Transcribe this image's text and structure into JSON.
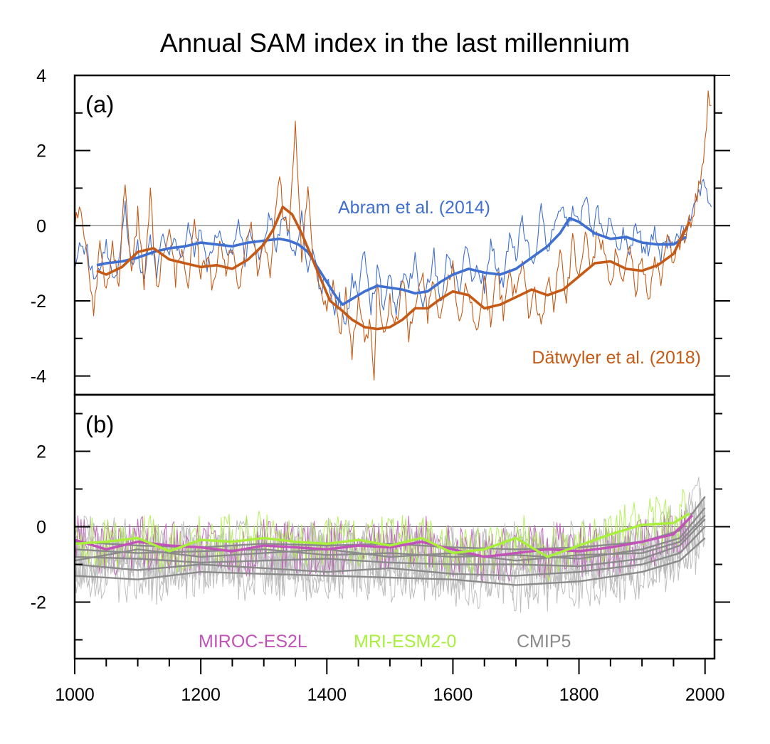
{
  "chart_data": [
    {
      "panel": "(a)",
      "title": "Annual SAM index in the last millennium",
      "type": "line",
      "xlim": [
        1000,
        2015
      ],
      "ylim": [
        -4.5,
        4
      ],
      "yticks": [
        -4,
        -2,
        0,
        2,
        4
      ],
      "ytick_labels": [
        "-4",
        "-2",
        "0",
        "2",
        "4"
      ],
      "zero_line": true,
      "grid": false,
      "series": [
        {
          "name": "Abram et al. (2014)",
          "color": "#3f6fd0",
          "kind": "smoothed",
          "x": [
            1035,
            1050,
            1075,
            1100,
            1125,
            1150,
            1175,
            1200,
            1225,
            1250,
            1275,
            1300,
            1325,
            1340,
            1355,
            1370,
            1385,
            1400,
            1415,
            1425,
            1440,
            1460,
            1480,
            1500,
            1520,
            1540,
            1560,
            1580,
            1600,
            1625,
            1650,
            1675,
            1700,
            1725,
            1750,
            1770,
            1785,
            1800,
            1825,
            1850,
            1875,
            1900,
            1925,
            1950,
            1970
          ],
          "y": [
            -1.05,
            -1.0,
            -0.95,
            -0.85,
            -0.7,
            -0.6,
            -0.55,
            -0.45,
            -0.5,
            -0.55,
            -0.45,
            -0.4,
            -0.35,
            -0.4,
            -0.5,
            -0.7,
            -1.1,
            -1.5,
            -1.9,
            -2.1,
            -1.95,
            -1.75,
            -1.6,
            -1.65,
            -1.7,
            -1.8,
            -1.75,
            -1.5,
            -1.3,
            -1.15,
            -1.25,
            -1.3,
            -1.15,
            -0.85,
            -0.55,
            -0.2,
            0.2,
            0.1,
            -0.2,
            -0.35,
            -0.3,
            -0.45,
            -0.5,
            -0.5,
            -0.3
          ]
        },
        {
          "name": "Abram et al. (2014)",
          "color": "#3f6fd0",
          "kind": "annual",
          "x": [
            1000,
            1010,
            1020,
            1030,
            1040,
            1050,
            1060,
            1070,
            1080,
            1090,
            1100,
            1110,
            1120,
            1130,
            1140,
            1150,
            1160,
            1170,
            1180,
            1190,
            1200,
            1210,
            1220,
            1230,
            1240,
            1250,
            1260,
            1270,
            1280,
            1290,
            1300,
            1310,
            1320,
            1330,
            1340,
            1350,
            1360,
            1370,
            1380,
            1390,
            1400,
            1410,
            1420,
            1430,
            1440,
            1450,
            1460,
            1470,
            1480,
            1490,
            1500,
            1510,
            1520,
            1530,
            1540,
            1550,
            1560,
            1570,
            1580,
            1590,
            1600,
            1610,
            1620,
            1630,
            1640,
            1650,
            1660,
            1670,
            1680,
            1690,
            1700,
            1710,
            1720,
            1730,
            1740,
            1750,
            1760,
            1770,
            1780,
            1790,
            1800,
            1810,
            1820,
            1830,
            1840,
            1850,
            1860,
            1870,
            1880,
            1890,
            1900,
            1910,
            1920,
            1930,
            1940,
            1950,
            1960,
            1970,
            1980,
            1990,
            2000,
            2010
          ],
          "y": [
            -1.1,
            -0.4,
            -0.7,
            -1.4,
            -1.2,
            -0.6,
            -1.3,
            -1.0,
            0.5,
            -1.2,
            -0.6,
            -1.5,
            -0.4,
            -1.3,
            0.0,
            -0.8,
            -0.3,
            -0.9,
            0.2,
            -0.7,
            -0.2,
            -1.0,
            -0.5,
            0.1,
            -0.8,
            -0.6,
            0.0,
            -0.9,
            -0.1,
            -0.8,
            -0.4,
            0.3,
            -0.6,
            0.4,
            -0.3,
            -0.9,
            0.2,
            -1.3,
            -0.7,
            -1.7,
            -1.4,
            -2.3,
            -2.0,
            -2.8,
            -1.4,
            -2.0,
            -0.5,
            -2.3,
            -1.2,
            -2.1,
            -1.1,
            -2.5,
            -1.3,
            -1.7,
            -0.9,
            -2.2,
            -1.6,
            -0.8,
            -2.0,
            -1.0,
            -0.9,
            -1.7,
            -0.6,
            -1.4,
            -1.0,
            -1.6,
            -0.5,
            -1.2,
            -1.4,
            -0.2,
            -1.0,
            0.1,
            -0.6,
            -1.0,
            0.5,
            -0.8,
            -0.1,
            0.6,
            0.0,
            0.3,
            0.0,
            0.8,
            -0.2,
            0.4,
            -0.4,
            0.1,
            -0.6,
            -0.2,
            -0.7,
            0.0,
            -0.5,
            -0.7,
            -0.2,
            -0.8,
            -0.4,
            -0.6,
            -0.3,
            -0.1,
            0.3,
            0.8,
            1.1,
            0.5
          ]
        },
        {
          "name": "Dätwyler et al. (2018)",
          "color": "#c55a16",
          "kind": "smoothed",
          "x": [
            1035,
            1050,
            1075,
            1100,
            1125,
            1150,
            1175,
            1200,
            1225,
            1250,
            1275,
            1300,
            1315,
            1330,
            1345,
            1360,
            1375,
            1390,
            1405,
            1420,
            1440,
            1460,
            1480,
            1500,
            1520,
            1540,
            1560,
            1580,
            1600,
            1625,
            1650,
            1675,
            1700,
            1725,
            1750,
            1775,
            1800,
            1825,
            1850,
            1875,
            1900,
            1925,
            1950,
            1975
          ],
          "y": [
            -1.2,
            -1.3,
            -1.1,
            -0.7,
            -0.6,
            -0.9,
            -1.0,
            -1.1,
            -1.05,
            -1.15,
            -0.9,
            -0.5,
            -0.1,
            0.5,
            0.3,
            -0.2,
            -0.8,
            -1.4,
            -2.0,
            -2.2,
            -2.5,
            -2.7,
            -2.75,
            -2.7,
            -2.5,
            -2.2,
            -2.2,
            -1.95,
            -1.75,
            -1.85,
            -2.2,
            -2.1,
            -1.9,
            -1.7,
            -1.85,
            -1.7,
            -1.35,
            -1.0,
            -0.95,
            -1.15,
            -1.2,
            -1.05,
            -0.75,
            0.1
          ]
        },
        {
          "name": "Dätwyler et al. (2018)",
          "color": "#c55a16",
          "kind": "annual",
          "x": [
            1000,
            1010,
            1020,
            1030,
            1040,
            1050,
            1060,
            1070,
            1080,
            1090,
            1100,
            1110,
            1120,
            1130,
            1140,
            1150,
            1160,
            1170,
            1180,
            1190,
            1200,
            1210,
            1220,
            1230,
            1240,
            1250,
            1260,
            1270,
            1280,
            1290,
            1300,
            1310,
            1320,
            1325,
            1330,
            1340,
            1350,
            1356,
            1360,
            1370,
            1380,
            1390,
            1400,
            1410,
            1420,
            1430,
            1440,
            1450,
            1460,
            1470,
            1475,
            1480,
            1490,
            1500,
            1510,
            1520,
            1530,
            1540,
            1550,
            1560,
            1570,
            1580,
            1590,
            1600,
            1610,
            1620,
            1630,
            1640,
            1650,
            1660,
            1670,
            1680,
            1690,
            1700,
            1710,
            1720,
            1730,
            1740,
            1750,
            1760,
            1770,
            1780,
            1790,
            1800,
            1810,
            1820,
            1830,
            1840,
            1850,
            1860,
            1870,
            1880,
            1890,
            1900,
            1910,
            1920,
            1930,
            1940,
            1950,
            1960,
            1970,
            1980,
            1990,
            2000,
            2005,
            2010
          ],
          "y": [
            0.1,
            0.5,
            -0.8,
            -2.3,
            -0.6,
            -1.9,
            -0.4,
            -1.6,
            1.2,
            -1.3,
            0.3,
            -1.5,
            0.8,
            -1.7,
            -0.7,
            -0.2,
            -1.4,
            -0.5,
            -1.6,
            0.2,
            -1.3,
            -0.8,
            -1.7,
            -0.3,
            -1.2,
            -0.6,
            -1.7,
            -0.8,
            0.1,
            -1.1,
            -0.5,
            -1.2,
            0.6,
            1.5,
            0.4,
            -0.2,
            2.9,
            0.6,
            -0.8,
            0.9,
            -1.2,
            -1.5,
            -2.3,
            -1.6,
            -3.0,
            -1.8,
            -3.4,
            -2.0,
            -3.1,
            -2.6,
            -4.3,
            -1.6,
            -2.9,
            -2.0,
            -2.6,
            -1.4,
            -2.9,
            -2.3,
            -1.2,
            -2.4,
            -1.5,
            -2.6,
            -1.7,
            -1.1,
            -2.7,
            -1.6,
            -2.1,
            -2.9,
            -1.5,
            -2.6,
            -1.2,
            -2.3,
            -1.4,
            -1.9,
            -1.0,
            -2.4,
            -1.8,
            -2.8,
            -1.4,
            -2.1,
            -0.7,
            -2.0,
            -0.4,
            -1.5,
            -0.1,
            -1.3,
            0.0,
            -0.8,
            -1.6,
            -0.6,
            -1.5,
            -0.4,
            -1.8,
            -0.7,
            -2.1,
            -0.9,
            -1.4,
            -0.2,
            -0.9,
            -0.5,
            -0.2,
            0.3,
            1.0,
            2.2,
            3.4,
            3.2
          ]
        }
      ]
    },
    {
      "panel": "(b)",
      "type": "line",
      "xlim": [
        1000,
        2015
      ],
      "ylim": [
        -3.5,
        3.5
      ],
      "yticks": [
        -2,
        0,
        2
      ],
      "ytick_labels": [
        "-2",
        "0",
        "2"
      ],
      "xticks": [
        1000,
        1200,
        1400,
        1600,
        1800,
        2000
      ],
      "xtick_labels": [
        "1000",
        "1200",
        "1400",
        "1600",
        "1800",
        "2000"
      ],
      "zero_line": true,
      "grid": false,
      "series": [
        {
          "name": "CMIP5",
          "color": "#8a8a8a",
          "kind": "smoothed",
          "members": [
            {
              "x": [
                1000,
                1100,
                1200,
                1300,
                1400,
                1500,
                1600,
                1700,
                1800,
                1900,
                1960,
                2000
              ],
              "y": [
                -1.3,
                -1.4,
                -1.2,
                -1.25,
                -1.3,
                -1.35,
                -1.4,
                -1.55,
                -1.45,
                -1.2,
                -0.9,
                -0.3
              ]
            },
            {
              "x": [
                1000,
                1100,
                1200,
                1300,
                1400,
                1500,
                1600,
                1700,
                1800,
                1900,
                1960,
                2000
              ],
              "y": [
                -1.0,
                -1.15,
                -1.0,
                -1.1,
                -1.2,
                -1.1,
                -1.25,
                -1.3,
                -1.2,
                -1.0,
                -0.7,
                0.0
              ]
            },
            {
              "x": [
                1000,
                1100,
                1200,
                1300,
                1400,
                1500,
                1600,
                1700,
                1800,
                1900,
                1960,
                2000
              ],
              "y": [
                -0.8,
                -0.85,
                -0.95,
                -0.9,
                -0.85,
                -0.95,
                -1.0,
                -1.0,
                -1.05,
                -0.85,
                -0.5,
                0.2
              ]
            },
            {
              "x": [
                1000,
                1100,
                1200,
                1300,
                1400,
                1500,
                1600,
                1700,
                1800,
                1900,
                1960,
                2000
              ],
              "y": [
                -0.6,
                -0.7,
                -0.65,
                -0.6,
                -0.75,
                -0.7,
                -0.8,
                -0.75,
                -0.85,
                -0.6,
                -0.3,
                0.5
              ]
            },
            {
              "x": [
                1000,
                1100,
                1200,
                1300,
                1400,
                1500,
                1600,
                1700,
                1800,
                1900,
                1960,
                2000
              ],
              "y": [
                -0.4,
                -0.5,
                -0.55,
                -0.45,
                -0.5,
                -0.45,
                -0.55,
                -0.6,
                -0.55,
                -0.4,
                -0.1,
                0.8
              ]
            },
            {
              "x": [
                1000,
                1100,
                1200,
                1300,
                1400,
                1500,
                1600,
                1700,
                1800,
                1900,
                1960,
                2000
              ],
              "y": [
                -0.9,
                -0.6,
                -0.8,
                -0.7,
                -0.6,
                -0.8,
                -0.7,
                -0.9,
                -0.75,
                -0.7,
                -0.4,
                0.3
              ]
            }
          ]
        },
        {
          "name": "MIROC-ES2L",
          "color": "#c052b8",
          "kind": "smoothed",
          "x": [
            1000,
            1050,
            1100,
            1150,
            1200,
            1250,
            1300,
            1350,
            1400,
            1450,
            1500,
            1550,
            1600,
            1650,
            1700,
            1750,
            1800,
            1850,
            1900,
            1950,
            1980
          ],
          "y": [
            -0.35,
            -0.6,
            -0.4,
            -0.5,
            -0.55,
            -0.65,
            -0.5,
            -0.55,
            -0.6,
            -0.5,
            -0.55,
            -0.4,
            -0.6,
            -0.8,
            -0.7,
            -0.6,
            -0.65,
            -0.55,
            -0.4,
            -0.2,
            0.3
          ]
        },
        {
          "name": "MRI-ESM2-0",
          "color": "#a8f03c",
          "kind": "smoothed",
          "x": [
            1000,
            1050,
            1100,
            1150,
            1200,
            1250,
            1300,
            1350,
            1400,
            1450,
            1500,
            1550,
            1600,
            1650,
            1700,
            1750,
            1800,
            1850,
            1900,
            1950,
            1975
          ],
          "y": [
            -0.45,
            -0.4,
            -0.3,
            -0.65,
            -0.35,
            -0.4,
            -0.3,
            -0.4,
            -0.45,
            -0.35,
            -0.5,
            -0.3,
            -0.7,
            -0.6,
            -0.3,
            -0.8,
            -0.5,
            -0.2,
            0.05,
            0.1,
            0.35
          ]
        }
      ]
    }
  ],
  "figure": {
    "title": "Annual SAM index in the last millennium"
  },
  "labels": {
    "panel_a": "(a)",
    "panel_b": "(b)",
    "abram": "Abram et al. (2014)",
    "datwyler": "Dätwyler et al. (2018)",
    "miroc": "MIROC-ES2L",
    "mri": "MRI-ESM2-0",
    "cmip5": "CMIP5"
  },
  "colors": {
    "abram": "#3f6fd0",
    "datwyler": "#c55a16",
    "miroc": "#c052b8",
    "mri": "#a8f03c",
    "cmip5": "#8a8a8a",
    "cmip5_annual": "#b8b8b8",
    "zero_line": "#666666"
  }
}
